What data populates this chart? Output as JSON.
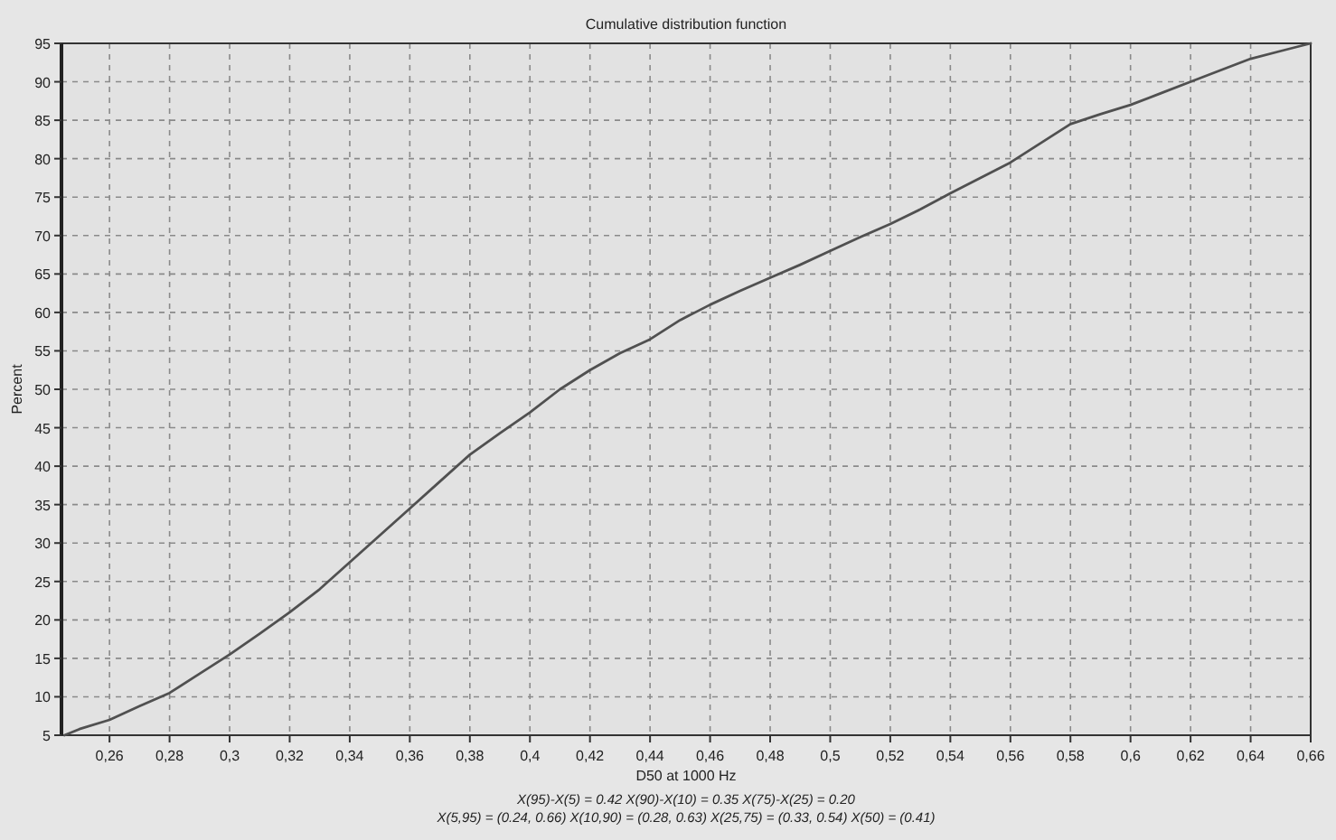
{
  "chart_data": {
    "type": "line",
    "title": "Cumulative distribution function",
    "xlabel": "D50  at 1000 Hz",
    "ylabel": "Percent",
    "annotations": [
      "X(95)-X(5) = 0.42  X(90)-X(10) = 0.35  X(75)-X(25) = 0.20",
      "X(5,95) = (0.24, 0.66)  X(10,90) = (0.28, 0.63)  X(25,75) = (0.33, 0.54)  X(50) = (0.41)"
    ],
    "series": [
      {
        "color": "#505050",
        "x": [
          0.245,
          0.25,
          0.26,
          0.27,
          0.28,
          0.29,
          0.3,
          0.31,
          0.32,
          0.33,
          0.34,
          0.35,
          0.36,
          0.37,
          0.38,
          0.39,
          0.4,
          0.41,
          0.42,
          0.43,
          0.44,
          0.45,
          0.46,
          0.47,
          0.48,
          0.49,
          0.5,
          0.51,
          0.52,
          0.53,
          0.54,
          0.55,
          0.56,
          0.57,
          0.58,
          0.59,
          0.6,
          0.61,
          0.62,
          0.63,
          0.64,
          0.65,
          0.66
        ],
        "values": [
          5,
          5.8,
          7,
          8.8,
          10.5,
          13,
          15.5,
          18.2,
          21,
          24,
          27.5,
          31,
          34.5,
          38,
          41.5,
          44.3,
          47,
          50,
          52.5,
          54.7,
          56.5,
          59,
          61,
          62.8,
          64.5,
          66.2,
          68,
          69.8,
          71.5,
          73.4,
          75.5,
          77.5,
          79.5,
          82,
          84.5,
          85.8,
          87,
          88.5,
          90,
          91.5,
          93,
          94,
          95
        ]
      }
    ],
    "xlim": [
      0.244,
      0.66
    ],
    "ylim": [
      5,
      95
    ],
    "xticks": [
      {
        "value": 0.26,
        "label": "0,26"
      },
      {
        "value": 0.28,
        "label": "0,28"
      },
      {
        "value": 0.3,
        "label": "0,3"
      },
      {
        "value": 0.32,
        "label": "0,32"
      },
      {
        "value": 0.34,
        "label": "0,34"
      },
      {
        "value": 0.36,
        "label": "0,36"
      },
      {
        "value": 0.38,
        "label": "0,38"
      },
      {
        "value": 0.4,
        "label": "0,4"
      },
      {
        "value": 0.42,
        "label": "0,42"
      },
      {
        "value": 0.44,
        "label": "0,44"
      },
      {
        "value": 0.46,
        "label": "0,46"
      },
      {
        "value": 0.48,
        "label": "0,48"
      },
      {
        "value": 0.5,
        "label": "0,5"
      },
      {
        "value": 0.52,
        "label": "0,52"
      },
      {
        "value": 0.54,
        "label": "0,54"
      },
      {
        "value": 0.56,
        "label": "0,56"
      },
      {
        "value": 0.58,
        "label": "0,58"
      },
      {
        "value": 0.6,
        "label": "0,6"
      },
      {
        "value": 0.62,
        "label": "0,62"
      },
      {
        "value": 0.64,
        "label": "0,64"
      },
      {
        "value": 0.66,
        "label": "0,66"
      }
    ],
    "yticks": [
      5,
      10,
      15,
      20,
      25,
      30,
      35,
      40,
      45,
      50,
      55,
      60,
      65,
      70,
      75,
      80,
      85,
      90,
      95
    ],
    "grid": true,
    "line_style": "solid",
    "marker": "none"
  }
}
